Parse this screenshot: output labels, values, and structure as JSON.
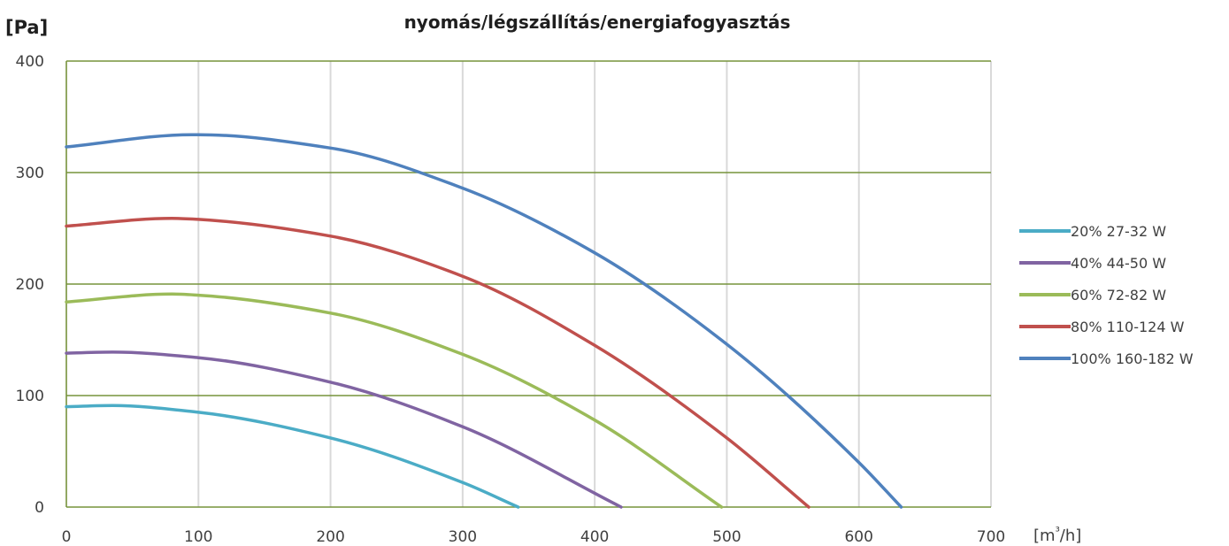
{
  "chart_data": {
    "type": "line",
    "title": "nyomás/légszállítás/energiafogyasztás",
    "ylabel": "[Pa]",
    "xlabel_prefix": "[m",
    "xlabel_sup": "³",
    "xlabel_suffix": "/h]",
    "xlim": [
      0,
      700
    ],
    "ylim": [
      0,
      400
    ],
    "x_ticks": [
      "0",
      "100",
      "200",
      "300",
      "400",
      "500",
      "600",
      "700"
    ],
    "y_ticks": [
      "0",
      "100",
      "200",
      "300",
      "400"
    ],
    "horizontal_grid_color": "#77933c",
    "vertical_grid_color": "#d9d9d9",
    "legend_position": "right",
    "series": [
      {
        "name": "20% 27-32 W",
        "color": "#4bacc6",
        "x": [
          0,
          35,
          100,
          200,
          300,
          342
        ],
        "y": [
          90,
          91,
          85,
          62,
          22,
          0
        ]
      },
      {
        "name": "40% 44-50 W",
        "color": "#8064a2",
        "x": [
          0,
          35,
          100,
          200,
          300,
          420
        ],
        "y": [
          138,
          139,
          134,
          112,
          72,
          0
        ]
      },
      {
        "name": "60% 72-82 W",
        "color": "#9bbb59",
        "x": [
          0,
          80,
          100,
          200,
          300,
          400,
          496
        ],
        "y": [
          184,
          191,
          190,
          174,
          137,
          78,
          0
        ]
      },
      {
        "name": "80% 110-124 W",
        "color": "#c0504d",
        "x": [
          0,
          80,
          100,
          200,
          300,
          400,
          500,
          562
        ],
        "y": [
          252,
          259,
          258,
          243,
          207,
          145,
          62,
          0
        ]
      },
      {
        "name": "100% 160-182 W",
        "color": "#4f81bd",
        "x": [
          0,
          95,
          100,
          200,
          300,
          400,
          500,
          600,
          632
        ],
        "y": [
          323,
          334,
          334,
          322,
          286,
          228,
          146,
          40,
          0
        ]
      }
    ]
  }
}
